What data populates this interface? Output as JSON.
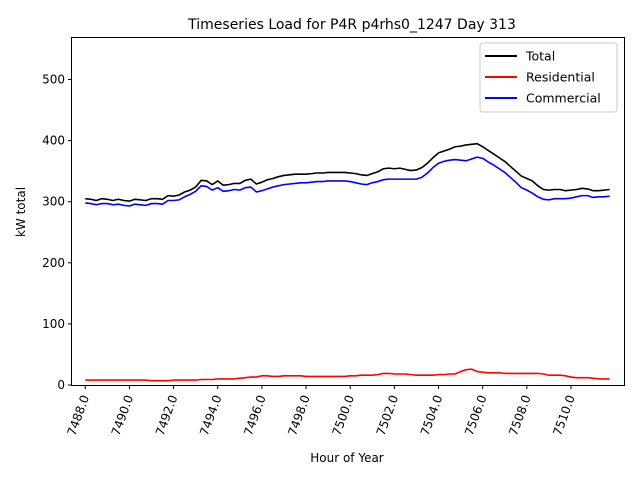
{
  "chart_data": {
    "type": "line",
    "title": "Timeseries Load for P4R p4rhs0_1247  Day 313",
    "xlabel": "Hour of Year",
    "ylabel": "kW total",
    "xlim": [
      7487.4,
      7512.4
    ],
    "ylim": [
      0,
      568
    ],
    "xticks": [
      7488,
      7490,
      7492,
      7494,
      7496,
      7498,
      7500,
      7502,
      7504,
      7506,
      7508,
      7510
    ],
    "xtick_labels": [
      "7488.0",
      "7490.0",
      "7492.0",
      "7494.0",
      "7496.0",
      "7498.0",
      "7500.0",
      "7502.0",
      "7504.0",
      "7506.0",
      "7508.0",
      "7510.0"
    ],
    "yticks": [
      0,
      100,
      200,
      300,
      400,
      500
    ],
    "ytick_labels": [
      "0",
      "100",
      "200",
      "300",
      "400",
      "500"
    ],
    "grid": false,
    "legend_position": "top-right",
    "x": [
      7488.0,
      7488.25,
      7488.5,
      7488.75,
      7489.0,
      7489.25,
      7489.5,
      7489.75,
      7490.0,
      7490.25,
      7490.5,
      7490.75,
      7491.0,
      7491.25,
      7491.5,
      7491.75,
      7492.0,
      7492.25,
      7492.5,
      7492.75,
      7493.0,
      7493.25,
      7493.5,
      7493.75,
      7494.0,
      7494.25,
      7494.5,
      7494.75,
      7495.0,
      7495.25,
      7495.5,
      7495.75,
      7496.0,
      7496.25,
      7496.5,
      7496.75,
      7497.0,
      7497.25,
      7497.5,
      7497.75,
      7498.0,
      7498.25,
      7498.5,
      7498.75,
      7499.0,
      7499.25,
      7499.5,
      7499.75,
      7500.0,
      7500.25,
      7500.5,
      7500.75,
      7501.0,
      7501.25,
      7501.5,
      7501.75,
      7502.0,
      7502.25,
      7502.5,
      7502.75,
      7503.0,
      7503.25,
      7503.5,
      7503.75,
      7504.0,
      7504.25,
      7504.5,
      7504.75,
      7505.0,
      7505.25,
      7505.5,
      7505.75,
      7506.0,
      7506.25,
      7506.5,
      7506.75,
      7507.0,
      7507.25,
      7507.5,
      7507.75,
      7508.0,
      7508.25,
      7508.5,
      7508.75,
      7509.0,
      7509.25,
      7509.5,
      7509.75,
      7510.0,
      7510.25,
      7510.5,
      7510.75,
      7511.0,
      7511.25,
      7511.5,
      7511.75
    ],
    "series": [
      {
        "name": "Total",
        "color": "#000000",
        "values": [
          305,
          304,
          302,
          305,
          304,
          302,
          304,
          302,
          301,
          304,
          303,
          302,
          305,
          305,
          304,
          310,
          309,
          311,
          316,
          319,
          324,
          335,
          334,
          328,
          334,
          327,
          328,
          330,
          330,
          335,
          337,
          329,
          332,
          336,
          338,
          341,
          343,
          344,
          345,
          345,
          345,
          346,
          347,
          347,
          348,
          348,
          348,
          348,
          347,
          346,
          344,
          343,
          346,
          349,
          354,
          355,
          354,
          355,
          353,
          351,
          352,
          356,
          363,
          372,
          380,
          383,
          386,
          390,
          391,
          393,
          394,
          395,
          390,
          384,
          378,
          372,
          366,
          358,
          350,
          342,
          338,
          334,
          326,
          320,
          319,
          320,
          320,
          318,
          319,
          320,
          322,
          321,
          318,
          318,
          319,
          320
        ]
      },
      {
        "name": "Residential",
        "color": "#ff0000",
        "values": [
          8,
          8,
          8,
          8,
          8,
          8,
          8,
          8,
          8,
          8,
          8,
          8,
          7,
          7,
          7,
          7,
          8,
          8,
          8,
          8,
          8,
          9,
          9,
          9,
          10,
          10,
          10,
          10,
          11,
          12,
          13,
          13,
          15,
          15,
          14,
          14,
          15,
          15,
          15,
          15,
          14,
          14,
          14,
          14,
          14,
          14,
          14,
          14,
          15,
          15,
          16,
          16,
          16,
          17,
          19,
          19,
          18,
          18,
          18,
          17,
          16,
          16,
          16,
          16,
          17,
          17,
          18,
          18,
          22,
          25,
          26,
          22,
          21,
          20,
          20,
          20,
          19,
          19,
          19,
          19,
          19,
          19,
          19,
          18,
          16,
          16,
          16,
          15,
          13,
          12,
          12,
          12,
          11,
          10,
          10,
          10
        ]
      },
      {
        "name": "Commercial",
        "color": "#0000ff",
        "values": [
          298,
          297,
          295,
          297,
          297,
          295,
          296,
          294,
          293,
          296,
          295,
          294,
          297,
          297,
          296,
          302,
          302,
          303,
          308,
          312,
          317,
          326,
          325,
          319,
          323,
          317,
          318,
          320,
          319,
          323,
          324,
          316,
          318,
          321,
          324,
          326,
          328,
          329,
          330,
          331,
          331,
          332,
          333,
          333,
          334,
          334,
          334,
          334,
          333,
          331,
          329,
          328,
          331,
          333,
          336,
          337,
          337,
          337,
          337,
          337,
          337,
          340,
          347,
          356,
          363,
          366,
          368,
          369,
          368,
          367,
          370,
          373,
          371,
          365,
          360,
          354,
          348,
          340,
          332,
          323,
          319,
          314,
          308,
          304,
          303,
          305,
          305,
          305,
          306,
          308,
          310,
          310,
          307,
          308,
          308,
          309
        ]
      }
    ]
  }
}
